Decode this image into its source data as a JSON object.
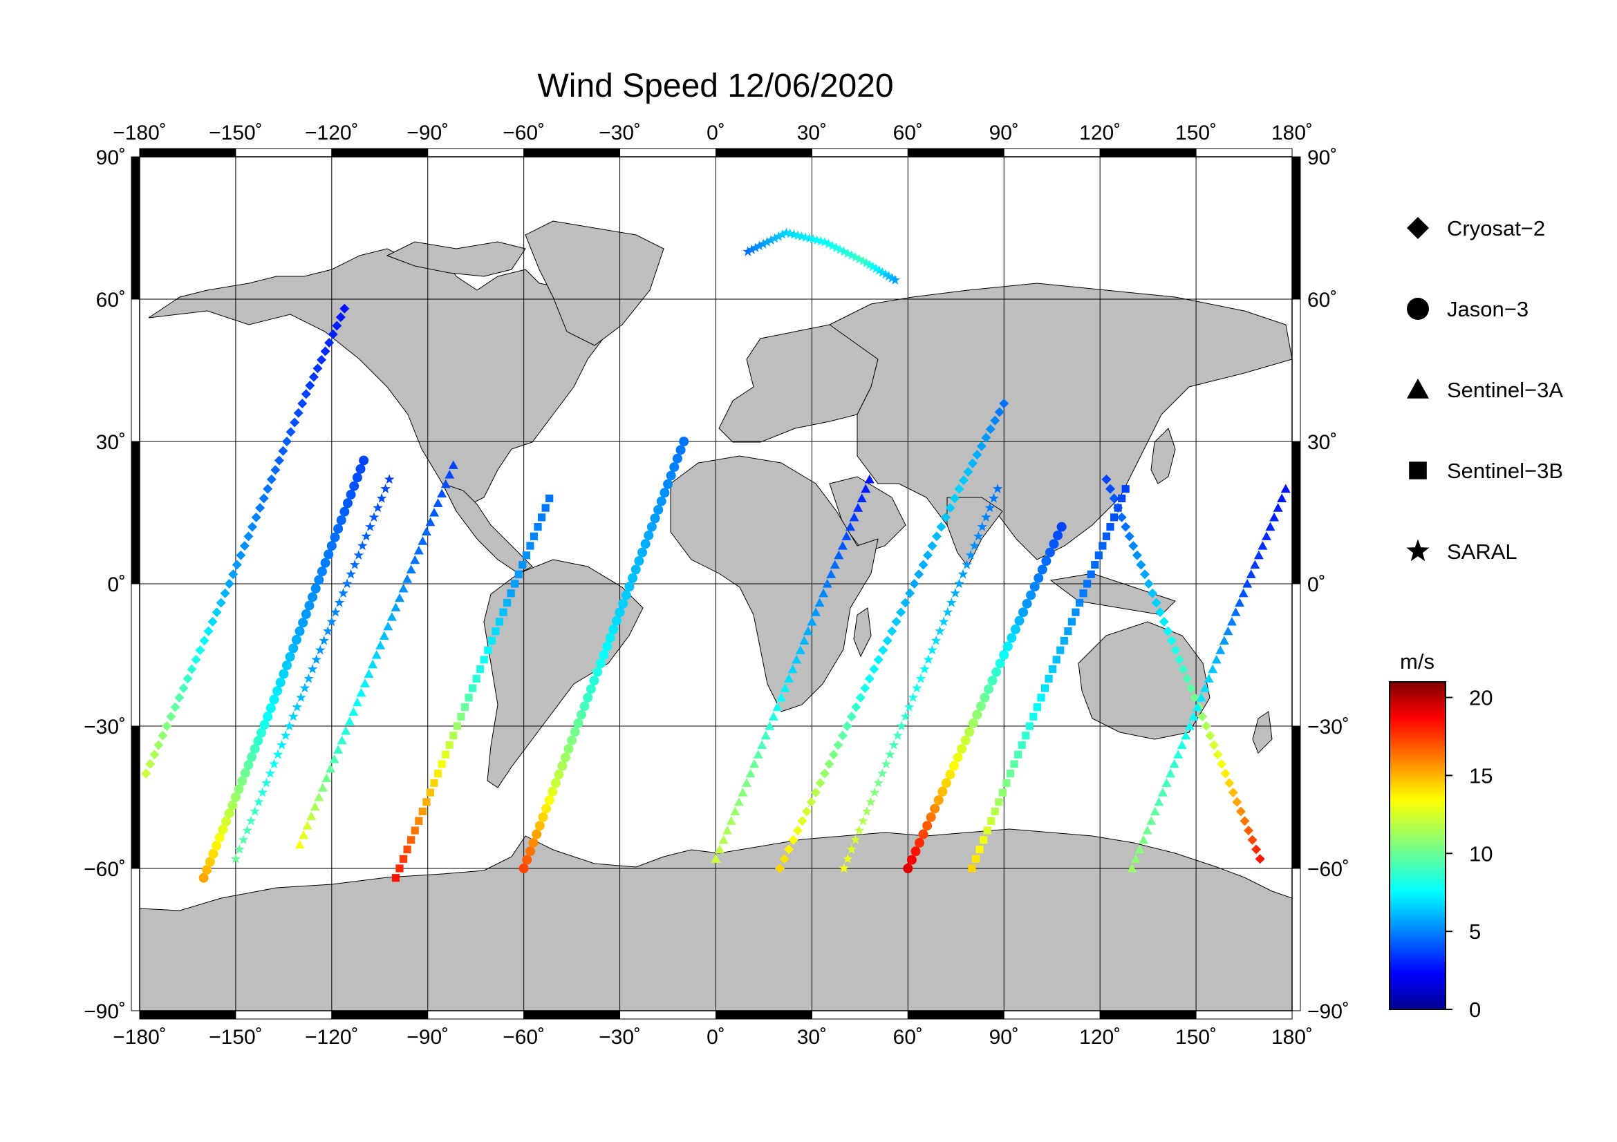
{
  "title": "Wind Speed 12/06/2020",
  "map": {
    "projection": "equirectangular",
    "lon_range": [
      -180,
      180
    ],
    "lat_range": [
      -90,
      90
    ],
    "lon_ticks": [
      -180,
      -150,
      -120,
      -90,
      -60,
      -30,
      0,
      30,
      60,
      90,
      120,
      150,
      180
    ],
    "lat_ticks": [
      90,
      60,
      30,
      0,
      -30,
      -60,
      -90
    ],
    "lon_tick_labels": [
      "−180˚",
      "−150˚",
      "−120˚",
      "−90˚",
      "−60˚",
      "−30˚",
      "0˚",
      "30˚",
      "60˚",
      "90˚",
      "120˚",
      "150˚",
      "180˚"
    ],
    "lat_tick_labels": [
      "90˚",
      "60˚",
      "30˚",
      "0˚",
      "−30˚",
      "−60˚",
      "−90˚"
    ],
    "grid": true,
    "land_color": "#bebebe",
    "ocean_color": "#ffffff"
  },
  "legend": {
    "items": [
      {
        "label": "Cryosat−2",
        "symbol": "diamond"
      },
      {
        "label": "Jason−3",
        "symbol": "circle"
      },
      {
        "label": "Sentinel−3A",
        "symbol": "triangle"
      },
      {
        "label": "Sentinel−3B",
        "symbol": "square"
      },
      {
        "label": "SARAL",
        "symbol": "star"
      }
    ]
  },
  "colorbar": {
    "unit": "m/s",
    "min": 0,
    "max": 21,
    "ticks": [
      0,
      5,
      10,
      15,
      20
    ],
    "tick_labels": [
      "0",
      "5",
      "10",
      "15",
      "20"
    ],
    "colormap": "jet"
  },
  "chart_data": {
    "type": "scatter",
    "title": "Wind Speed 12/06/2020",
    "xlabel": "",
    "ylabel": "",
    "xlim": [
      -180,
      180
    ],
    "ylim": [
      -90,
      90
    ],
    "color_variable": "wind speed (m/s)",
    "series": [
      {
        "name": "Cryosat−2",
        "symbol": "diamond",
        "tracks": [
          {
            "lon": [
              -178,
              -165,
              -152,
              -140,
              -128,
              -116
            ],
            "lat": [
              -40,
              -20,
              0,
              20,
              40,
              58
            ],
            "speed": [
              12,
              9,
              6,
              5,
              4,
              3
            ]
          },
          {
            "lon": [
              20,
              34,
              48,
              62,
              76,
              90
            ],
            "lat": [
              -60,
              -40,
              -20,
              0,
              20,
              38
            ],
            "speed": [
              14,
              11,
              8,
              6,
              7,
              5
            ]
          },
          {
            "lon": [
              170,
              158,
              146,
              134,
              122
            ],
            "lat": [
              -58,
              -38,
              -18,
              2,
              22
            ],
            "speed": [
              18,
              13,
              9,
              6,
              4
            ]
          }
        ]
      },
      {
        "name": "Jason−3",
        "symbol": "circle",
        "tracks": [
          {
            "lon": [
              -160,
              -150,
              -140,
              -130,
              -120,
              -110
            ],
            "lat": [
              -62,
              -45,
              -28,
              -10,
              8,
              26
            ],
            "speed": [
              15,
              11,
              8,
              6,
              5,
              4
            ]
          },
          {
            "lon": [
              -60,
              -50,
              -40,
              -30,
              -20,
              -10
            ],
            "lat": [
              -60,
              -42,
              -24,
              -6,
              12,
              30
            ],
            "speed": [
              17,
              12,
              9,
              7,
              6,
              5
            ]
          },
          {
            "lon": [
              60,
              72,
              84,
              96,
              108
            ],
            "lat": [
              -60,
              -42,
              -24,
              -6,
              12
            ],
            "speed": [
              19,
              14,
              10,
              6,
              4
            ]
          }
        ]
      },
      {
        "name": "Sentinel−3A",
        "symbol": "triangle",
        "tracks": [
          {
            "lon": [
              -130,
              -118,
              -106,
              -94,
              -82
            ],
            "lat": [
              -55,
              -35,
              -15,
              5,
              25
            ],
            "speed": [
              13,
              9,
              7,
              5,
              4
            ]
          },
          {
            "lon": [
              0,
              12,
              24,
              36,
              48
            ],
            "lat": [
              -58,
              -38,
              -18,
              2,
              22
            ],
            "speed": [
              12,
              10,
              7,
              5,
              3
            ]
          },
          {
            "lon": [
              130,
              142,
              154,
              166,
              178
            ],
            "lat": [
              -60,
              -40,
              -20,
              0,
              20
            ],
            "speed": [
              11,
              9,
              7,
              4,
              3
            ]
          }
        ]
      },
      {
        "name": "Sentinel−3B",
        "symbol": "square",
        "tracks": [
          {
            "lon": [
              -100,
              -88,
              -76,
              -64,
              -52
            ],
            "lat": [
              -62,
              -42,
              -22,
              -2,
              18
            ],
            "speed": [
              18,
              14,
              9,
              6,
              5
            ]
          },
          {
            "lon": [
              80,
              92,
              104,
              116,
              128
            ],
            "lat": [
              -60,
              -40,
              -20,
              0,
              20
            ],
            "speed": [
              14,
              10,
              7,
              5,
              4
            ]
          }
        ]
      },
      {
        "name": "SARAL",
        "symbol": "star",
        "tracks": [
          {
            "lon": [
              -150,
              -138,
              -126,
              -114,
              -102
            ],
            "lat": [
              -58,
              -38,
              -18,
              2,
              22
            ],
            "speed": [
              10,
              8,
              6,
              5,
              4
            ]
          },
          {
            "lon": [
              40,
              52,
              64,
              76,
              88
            ],
            "lat": [
              -60,
              -40,
              -20,
              0,
              20
            ],
            "speed": [
              13,
              10,
              8,
              6,
              5
            ]
          },
          {
            "lon": [
              10,
              22,
              34,
              46,
              56
            ],
            "lat": [
              70,
              74,
              72,
              68,
              64
            ],
            "speed": [
              5,
              7,
              8,
              9,
              6
            ]
          }
        ]
      }
    ]
  }
}
